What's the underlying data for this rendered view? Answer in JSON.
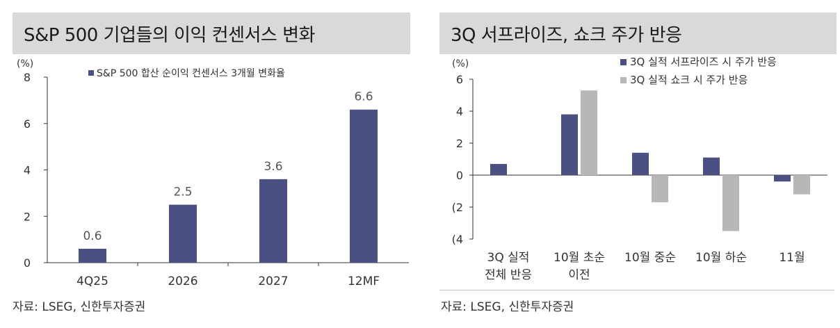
{
  "left": {
    "title": "S&P 500 기업들의 이익 컨센서스 변화",
    "source": "자료: LSEG, 신한투자증권",
    "chart_data": {
      "type": "bar",
      "title": "S&P 500 기업들의 이익 컨센서스 변화",
      "unit_label": "(%)",
      "categories": [
        "4Q25",
        "2026",
        "2027",
        "12MF"
      ],
      "series": [
        {
          "name": "S&P 500 합산 순이익 컨센서스 3개월 변화율",
          "values": [
            0.6,
            2.5,
            3.6,
            6.6
          ]
        }
      ],
      "data_labels": [
        "0.6",
        "2.5",
        "3.6",
        "6.6"
      ],
      "ylim": [
        0,
        8
      ],
      "yticks": [
        0,
        2,
        4,
        6,
        8
      ],
      "ytick_labels": [
        "0",
        "2",
        "4",
        "6",
        "8"
      ],
      "legend_position": "top-center",
      "grid": false
    }
  },
  "right": {
    "title": "3Q 서프라이즈, 쇼크 주가 반응",
    "source": "자료: LSEG, 신한투자증권",
    "chart_data": {
      "type": "bar",
      "title": "3Q 서프라이즈, 쇼크 주가 반응",
      "unit_label": "(%)",
      "categories": [
        [
          "3Q 실적",
          "전체 반응"
        ],
        [
          "10월 초순",
          "이전"
        ],
        [
          "10월 중순"
        ],
        [
          "10월 하순"
        ],
        [
          "11월"
        ]
      ],
      "series": [
        {
          "name": "3Q 실적 서프라이즈 시 주가 반응",
          "values": [
            0.7,
            3.8,
            1.4,
            1.1,
            -0.4
          ]
        },
        {
          "name": "3Q 실적 쇼크 시 주가 반응",
          "values": [
            0.0,
            5.3,
            -1.7,
            -3.5,
            -1.2
          ]
        }
      ],
      "ylim": [
        -4,
        6
      ],
      "yticks": [
        -4,
        -2,
        0,
        2,
        4,
        6
      ],
      "ytick_labels": [
        "(4",
        "(2",
        "0",
        "2",
        "4",
        "6"
      ],
      "legend_position": "top-right",
      "grid": false
    }
  },
  "colors": {
    "primary_bar": "#4a5082",
    "secondary_bar": "#b7b7b7",
    "axis": "#333333",
    "label_text": "#555555"
  }
}
